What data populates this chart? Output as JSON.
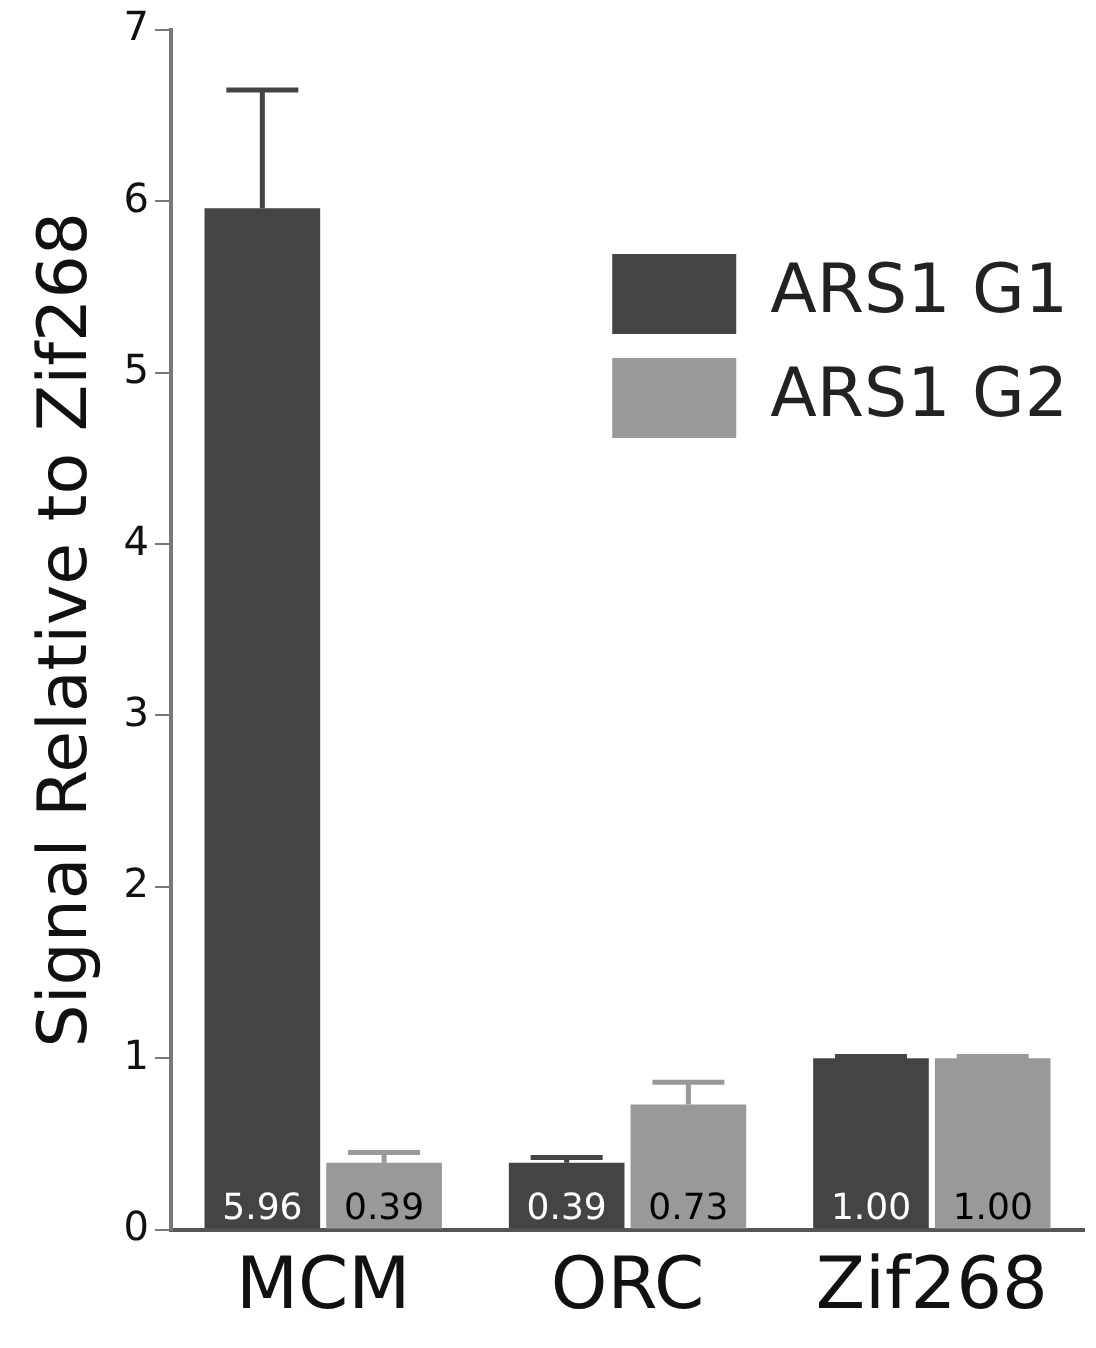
{
  "chart_data": {
    "type": "bar",
    "ylabel": "Signal Relative to Zif268",
    "categories": [
      "MCM",
      "ORC",
      "Zif268"
    ],
    "series": [
      {
        "name": "ARS1 G1",
        "color": "#444444",
        "values": [
          5.96,
          0.39,
          1.0
        ],
        "errors": [
          [
            5.96,
            6.65
          ],
          [
            0.39,
            0.42
          ],
          [
            1.0,
            1.01
          ]
        ],
        "value_labels": [
          "5.96",
          "0.39",
          "1.00"
        ]
      },
      {
        "name": "ARS1 G2",
        "color": "#999999",
        "values": [
          0.39,
          0.73,
          1.0
        ],
        "errors": [
          [
            0.39,
            0.45
          ],
          [
            0.73,
            0.86
          ],
          [
            1.0,
            1.01
          ]
        ],
        "value_labels": [
          "0.39",
          "0.73",
          "1.00"
        ]
      }
    ],
    "ylim": [
      0,
      7
    ],
    "yticks": [
      0,
      1,
      2,
      3,
      4,
      5,
      6,
      7
    ],
    "grid": false,
    "legend": "top right"
  }
}
